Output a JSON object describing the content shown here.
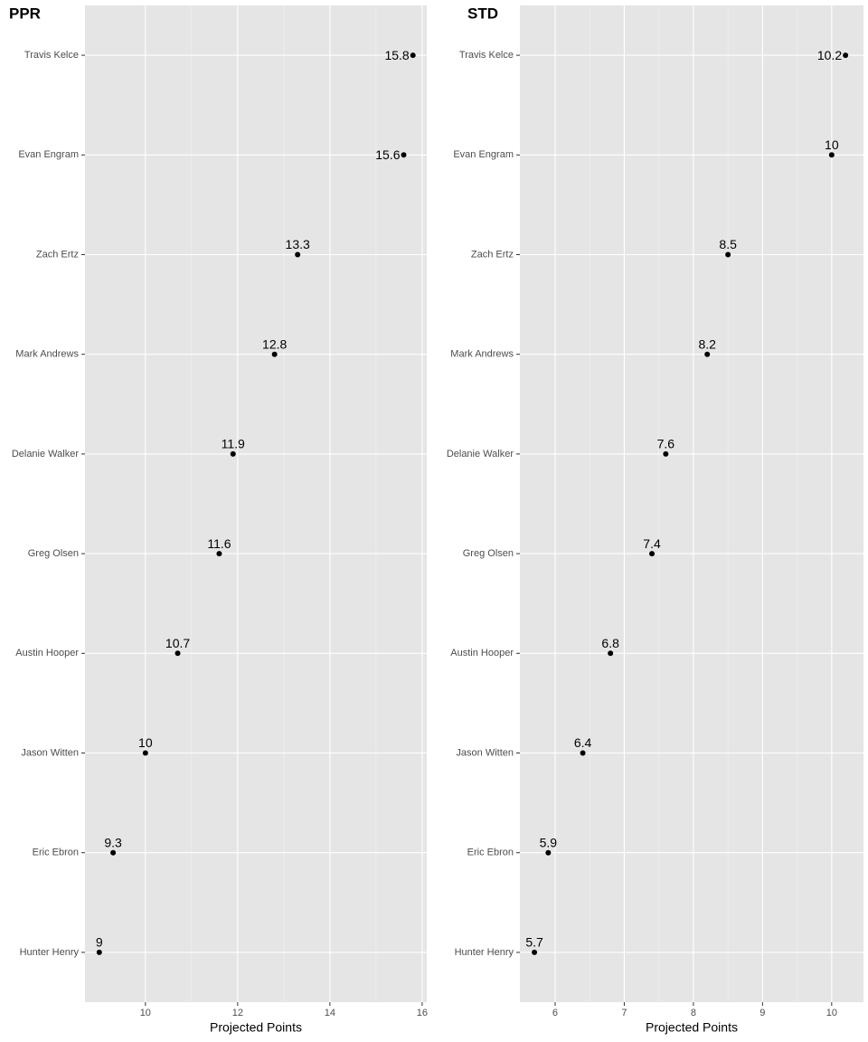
{
  "chart_data": [
    {
      "type": "dot",
      "title": "PPR",
      "xlabel": "Projected Points",
      "categories": [
        "Travis Kelce",
        "Evan Engram",
        "Zach Ertz",
        "Mark Andrews",
        "Delanie Walker",
        "Greg Olsen",
        "Austin Hooper",
        "Jason Witten",
        "Eric Ebron",
        "Hunter Henry"
      ],
      "values": [
        15.8,
        15.6,
        13.3,
        12.8,
        11.9,
        11.6,
        10.7,
        10,
        9.3,
        9
      ],
      "xlim": [
        8.69,
        16.1
      ],
      "xticks": [
        10,
        12,
        14,
        16
      ],
      "grid": true,
      "color": "#000000"
    },
    {
      "type": "dot",
      "title": "STD",
      "xlabel": "Projected Points",
      "categories": [
        "Travis Kelce",
        "Evan Engram",
        "Zach Ertz",
        "Mark Andrews",
        "Delanie Walker",
        "Greg Olsen",
        "Austin Hooper",
        "Jason Witten",
        "Eric Ebron",
        "Hunter Henry"
      ],
      "values": [
        10.2,
        10,
        8.5,
        8.2,
        7.6,
        7.4,
        6.8,
        6.4,
        5.9,
        5.7
      ],
      "xlim": [
        5.49,
        10.46
      ],
      "xticks": [
        6,
        7,
        8,
        9,
        10
      ],
      "grid": true,
      "color": "#000000"
    }
  ]
}
